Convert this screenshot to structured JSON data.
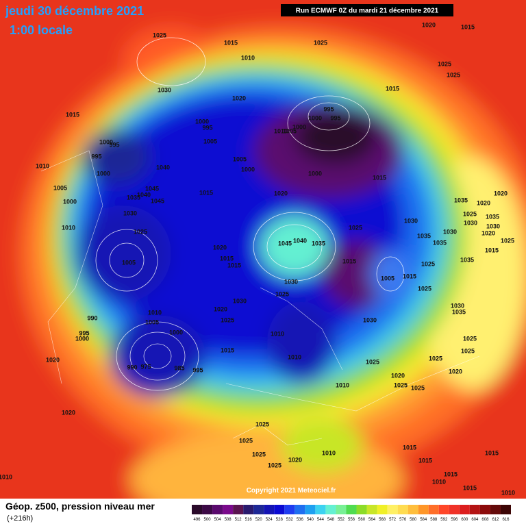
{
  "header": {
    "date": "jeudi 30 décembre 2021",
    "time": "1:00 locale",
    "run": "Run ECMWF 0Z du mardi 21 décembre 2021"
  },
  "copyright": "Copyright 2021 Meteociel.fr",
  "footer": {
    "title": "Géop. z500, pression niveau mer",
    "lead": "(+216h)"
  },
  "colorbar": {
    "values": [
      496,
      500,
      504,
      508,
      512,
      516,
      520,
      524,
      528,
      532,
      536,
      540,
      544,
      548,
      552,
      556,
      560,
      564,
      568,
      572,
      576,
      580,
      584,
      588,
      592,
      596,
      600,
      604,
      608,
      612,
      616
    ],
    "colors": [
      "#2a0a2a",
      "#3c0a46",
      "#5a0a6e",
      "#7a0a8c",
      "#5a1450",
      "#2a1a6e",
      "#1e2896",
      "#1414b4",
      "#0a0ad2",
      "#1e3cf0",
      "#1e6ef0",
      "#1ea0f0",
      "#3cd2f0",
      "#64f0d2",
      "#78f096",
      "#50dc50",
      "#8cdc28",
      "#c8e628",
      "#f0f028",
      "#fff064",
      "#ffdc50",
      "#ffbe3c",
      "#ff9628",
      "#ff6e28",
      "#ff4628",
      "#f03228",
      "#dc1e1e",
      "#b41414",
      "#8c0a0a",
      "#640a0a",
      "#3c0505"
    ]
  },
  "isobar_labels": [
    "1025",
    "1015",
    "1025",
    "1020",
    "1015",
    "1010",
    "1025",
    "1025",
    "1030",
    "1015",
    "1020",
    "1015",
    "995",
    "1000",
    "995",
    "1000",
    "995",
    "1010",
    "1005",
    "1000",
    "1000",
    "995",
    "1005",
    "995",
    "1005",
    "1040",
    "1000",
    "1010",
    "1000",
    "1015",
    "1000",
    "1005",
    "1045",
    "1040",
    "1035",
    "1045",
    "1015",
    "1020",
    "1000",
    "1035",
    "1020",
    "1020",
    "1030",
    "1025",
    "1030",
    "1035",
    "1025",
    "1030",
    "1025",
    "1010",
    "1030",
    "1030",
    "1020",
    "1035",
    "1025",
    "1045",
    "1040",
    "1035",
    "1020",
    "1035",
    "1015",
    "1005",
    "1015",
    "1015",
    "1015",
    "1025",
    "1035",
    "1005",
    "1015",
    "1030",
    "1025",
    "1025",
    "1030",
    "1030",
    "1035",
    "1010",
    "1020",
    "1005",
    "990",
    "1025",
    "1030",
    "1000",
    "995",
    "1000",
    "1010",
    "1025",
    "1015",
    "1025",
    "1010",
    "1020",
    "1025",
    "1025",
    "990",
    "975",
    "985",
    "995",
    "1020",
    "1020",
    "1025",
    "1010",
    "1025",
    "1020",
    "1025",
    "1025",
    "1015",
    "1025",
    "1010",
    "1015",
    "1015",
    "1020",
    "1025",
    "1015",
    "1010",
    "1015",
    "1010",
    "1010"
  ]
}
